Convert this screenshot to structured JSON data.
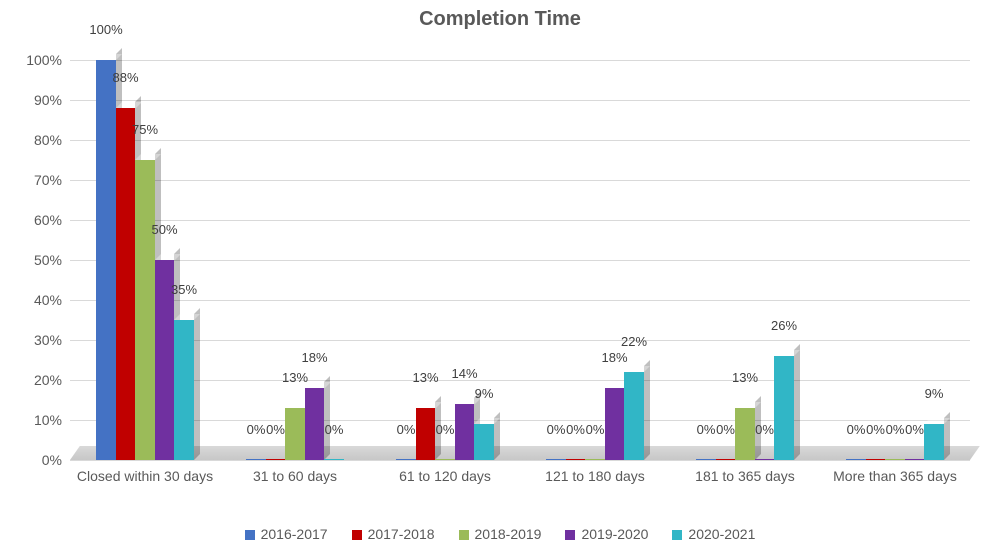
{
  "chart": {
    "type": "bar",
    "title": "Completion Time",
    "title_fontsize": 20,
    "title_fontweight": "bold",
    "title_color": "#595959",
    "background_color": "#ffffff",
    "plot_background_color": "#ffffff",
    "floor_color": "#d0d0d0",
    "grid_color": "#d9d9d9",
    "axis_line_color": "#bfbfbf",
    "label_color": "#595959",
    "axis_fontsize": 14,
    "datalabel_fontsize": 13,
    "legend_fontsize": 14,
    "y_axis": {
      "min": 0,
      "max": 100,
      "tick_step": 10,
      "fmt_suffix": "%"
    },
    "categories": [
      "Closed within 30 days",
      "31 to 60 days",
      "61 to 120 days",
      "121 to 180 days",
      "181 to 365 days",
      "More than 365 days"
    ],
    "series": [
      {
        "name": "2016-2017",
        "color": "#4472c4",
        "values": [
          100,
          0,
          0,
          0,
          0,
          0
        ]
      },
      {
        "name": "2017-2018",
        "color": "#c00000",
        "values": [
          88,
          0,
          13,
          0,
          0,
          0
        ]
      },
      {
        "name": "2018-2019",
        "color": "#9bbb59",
        "values": [
          75,
          13,
          0,
          0,
          13,
          0
        ]
      },
      {
        "name": "2019-2020",
        "color": "#7030a0",
        "values": [
          50,
          18,
          14,
          18,
          0,
          0
        ]
      },
      {
        "name": "2020-2021",
        "color": "#31b6c6",
        "values": [
          35,
          0,
          9,
          22,
          26,
          9
        ]
      }
    ],
    "bar_width_ratio": 0.13,
    "group_gap_ratio": 0.03,
    "style_3d": true
  }
}
